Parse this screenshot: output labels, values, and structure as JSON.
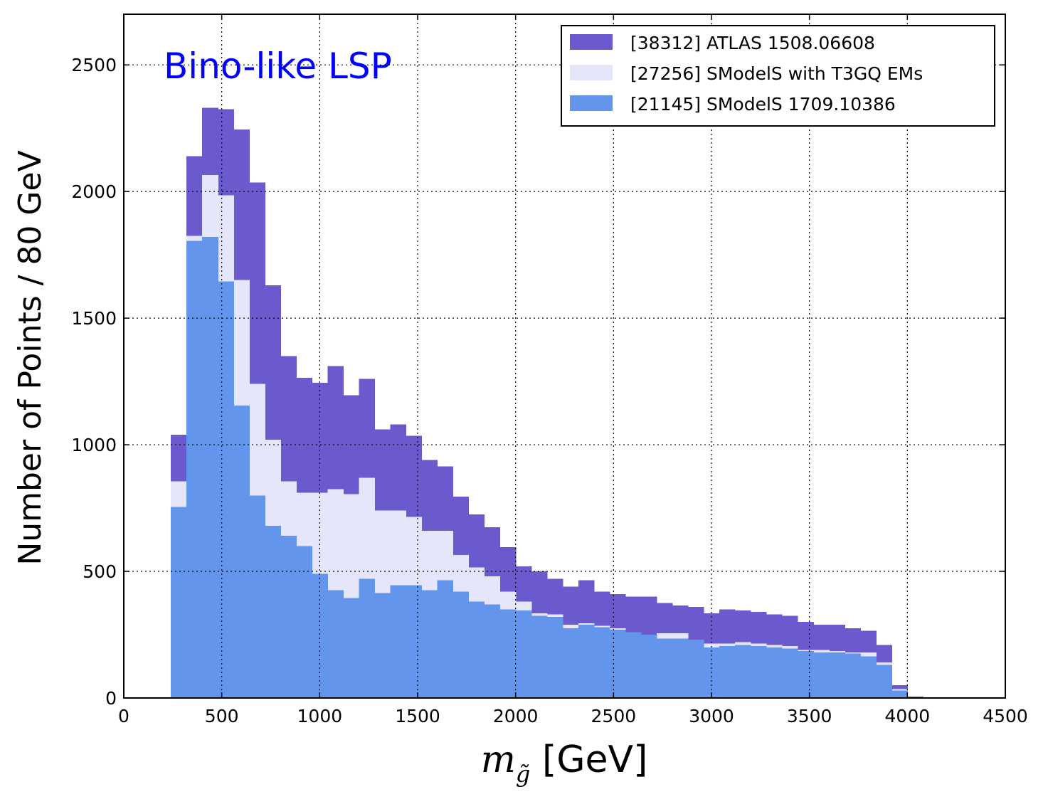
{
  "chart_data": {
    "type": "bar",
    "stacked_histogram": true,
    "annotation": "Bino-like LSP",
    "annotation_color": "#0000ff",
    "xlabel_math": "m",
    "xlabel_sub": "g̃",
    "xlabel_unit": "[GeV]",
    "ylabel": "Number of Points / 80 GeV",
    "xlim": [
      0,
      4500
    ],
    "ylim": [
      0,
      2700
    ],
    "xticks": [
      "0",
      "500",
      "1000",
      "1500",
      "2000",
      "2500",
      "3000",
      "3500",
      "4000",
      "4500"
    ],
    "yticks": [
      "0",
      "500",
      "1000",
      "1500",
      "2000",
      "2500"
    ],
    "grid": true,
    "legend_position": "top-right",
    "bin_width": 80,
    "bin_edges_start": 240,
    "series": [
      {
        "name": "[38312] ATLAS 1508.06608",
        "color": "#6a5acd",
        "values": [
          1040,
          2140,
          2330,
          2325,
          2245,
          2035,
          1630,
          1350,
          1265,
          1245,
          1310,
          1195,
          1260,
          1060,
          1080,
          1035,
          940,
          915,
          795,
          725,
          675,
          595,
          520,
          500,
          470,
          440,
          465,
          420,
          410,
          400,
          400,
          375,
          365,
          360,
          335,
          350,
          345,
          340,
          330,
          325,
          300,
          290,
          290,
          275,
          265,
          210,
          50,
          5
        ]
      },
      {
        "name": "[27256] SModelS with T3GQ EMs",
        "color": "#e6e6fa",
        "values": [
          855,
          1825,
          2065,
          1985,
          1650,
          1240,
          1020,
          855,
          810,
          810,
          825,
          805,
          870,
          740,
          740,
          715,
          660,
          660,
          565,
          515,
          480,
          420,
          380,
          335,
          330,
          290,
          295,
          285,
          275,
          255,
          250,
          255,
          255,
          230,
          215,
          215,
          220,
          215,
          210,
          205,
          190,
          190,
          185,
          180,
          180,
          140,
          35,
          3
        ]
      },
      {
        "name": "[21145] SModelS 1709.10386",
        "color": "#6495ed",
        "values": [
          755,
          1805,
          1820,
          1645,
          1155,
          800,
          680,
          640,
          600,
          490,
          425,
          395,
          470,
          415,
          445,
          445,
          425,
          465,
          420,
          380,
          370,
          350,
          345,
          325,
          320,
          275,
          290,
          280,
          270,
          260,
          250,
          235,
          235,
          230,
          200,
          205,
          210,
          205,
          200,
          195,
          185,
          180,
          180,
          175,
          165,
          130,
          30,
          3
        ]
      }
    ]
  }
}
